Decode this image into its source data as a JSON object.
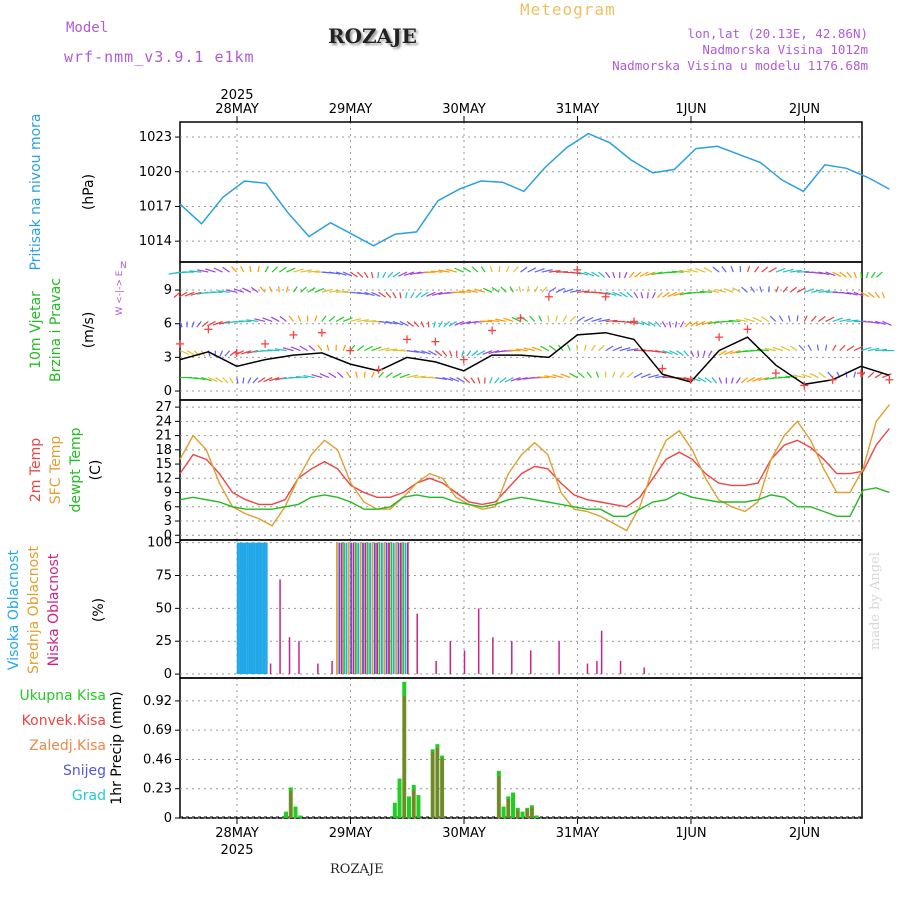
{
  "header": {
    "model_label": "Model",
    "model_name": "wrf-nmm_v3.9.1  e1km",
    "station": "ROZAJE",
    "product": "Meteogram",
    "coords": "lon,lat (20.13E, 42.86N)",
    "elevation": "Nadmorska Visina 1012m",
    "model_elevation": "Nadmorska Visina u modelu 1176.68m",
    "footer_station": "ROZAJE",
    "watermark": "made by Angel"
  },
  "time_axis": {
    "year": "2025",
    "dates": [
      "28MAY",
      "29MAY",
      "30MAY",
      "31MAY",
      "1JUN",
      "2JUN"
    ]
  },
  "colors": {
    "pressure": "#2aa0e0",
    "wind_speed": "#000000",
    "gust": "#ff4040",
    "t2m": "#ee4444",
    "tsfc": "#e0a030",
    "dewpt": "#22bb22",
    "high_cloud": "#22a8e8",
    "mid_cloud": "#e0a030",
    "low_cloud": "#cc2288",
    "rain_total": "#22cc22",
    "rain_conv": "#ee4444",
    "rain_frozen": "#ee8844",
    "snow": "#5555dd",
    "hail": "#22cccc"
  },
  "chart_data": [
    {
      "type": "line",
      "panel": "pressure",
      "ylabel_name": "Pritisak na nivou mora",
      "ylabel_unit": "(hPa)",
      "yticks": [
        1014,
        1017,
        1020,
        1023
      ],
      "ylim": [
        1012.2,
        1024.3
      ],
      "x_hours": [
        0,
        6,
        12,
        18,
        24,
        30,
        36,
        42,
        48,
        54,
        60,
        66,
        72,
        78,
        84,
        90,
        96,
        102,
        108,
        114,
        120,
        126,
        132,
        138,
        144,
        150
      ],
      "series": [
        {
          "values": [
            1017.2,
            1015.5,
            1017.8,
            1019.2,
            1019.0,
            1016.5,
            1014.4,
            1015.6,
            1014.6,
            1013.6,
            1014.6,
            1014.8,
            1017.5,
            1018.5,
            1019.2,
            1019.1,
            1018.3,
            1020.4,
            1022.1,
            1023.3,
            1022.5,
            1021.0,
            1019.9,
            1020.2,
            1022.0,
            1022.2
          ]
        }
      ],
      "series_tail": [
        1021.5,
        1020.8,
        1019.3,
        1018.3,
        1020.6,
        1020.3,
        1019.5,
        1018.5
      ]
    },
    {
      "type": "line",
      "panel": "wind",
      "ylabel_name": "10m Vjetar Brzina i Pravac",
      "ylabel_unit": "(m/s)",
      "compass": "N",
      "yticks": [
        0,
        3,
        6,
        9
      ],
      "ylim": [
        -0.8,
        11.5
      ],
      "x_hours": [
        0,
        6,
        12,
        18,
        24,
        30,
        36,
        42,
        48,
        54,
        60,
        66,
        72,
        78,
        84,
        90,
        96,
        102,
        108,
        114,
        120,
        126,
        132,
        138,
        144,
        150
      ],
      "series": [
        {
          "values": [
            2.8,
            3.5,
            2.2,
            2.8,
            3.2,
            3.4,
            2.4,
            1.8,
            3.0,
            2.6,
            1.8,
            3.2,
            3.2,
            3.0,
            5.0,
            5.2,
            4.6,
            1.5,
            0.8,
            3.6,
            4.8,
            2.3,
            0.6,
            1.0,
            2.2,
            1.4
          ]
        },
        {
          "values": [
            4.2,
            5.5,
            3.4,
            4.2,
            5.0,
            5.2,
            3.6,
            1.9,
            4.6,
            4.4,
            2.8,
            5.4,
            6.5,
            8.4,
            10.8,
            8.4,
            6.2,
            2.0,
            1.0,
            4.8,
            5.5,
            1.6,
            0.5,
            1.0,
            1.6,
            1.0
          ]
        }
      ]
    },
    {
      "type": "line",
      "panel": "temperature",
      "ylabel_names": [
        "2m Temp",
        "SFC Temp",
        "dewpt Temp"
      ],
      "ylabel_unit": "(C)",
      "yticks": [
        0,
        3,
        6,
        9,
        12,
        15,
        18,
        21,
        24,
        27
      ],
      "ylim": [
        -1,
        28.5
      ],
      "x_hours": [
        0,
        3,
        6,
        9,
        12,
        15,
        18,
        21,
        24,
        27,
        30,
        33,
        36,
        39,
        42,
        45,
        48,
        51,
        54,
        57,
        60,
        63,
        66,
        69,
        72,
        75,
        78,
        81,
        84,
        87,
        90,
        93,
        96,
        99,
        102,
        105,
        108,
        111,
        114,
        117,
        120,
        123,
        126,
        129,
        132,
        135,
        138,
        141,
        144,
        147,
        150
      ],
      "series": [
        {
          "values": [
            13,
            17,
            16,
            13,
            9,
            7.5,
            6.5,
            6.5,
            7.5,
            12,
            14,
            15.5,
            14,
            10.5,
            9,
            8,
            8,
            9,
            11,
            12,
            11,
            9,
            7,
            6.5,
            7,
            10,
            13,
            14.5,
            14,
            11,
            8.5,
            7.5,
            7,
            6.5,
            6,
            8,
            12,
            16,
            17.5,
            16,
            13,
            11,
            10.5,
            10.5,
            11,
            16,
            19,
            20,
            18.5,
            16,
            13
          ]
        },
        {
          "values": [
            16,
            21,
            18,
            11,
            6,
            4.5,
            3.5,
            2,
            6,
            12,
            17,
            20,
            18,
            11,
            7,
            5.5,
            5.5,
            8,
            11,
            13,
            12,
            8,
            6.5,
            5.5,
            6,
            13,
            17,
            19.5,
            17,
            9,
            5.5,
            5,
            4,
            2.5,
            1,
            6,
            14,
            20,
            22,
            18,
            12,
            7.5,
            6,
            5,
            7,
            16,
            21,
            24,
            20,
            14,
            9
          ]
        },
        {
          "values": [
            7.5,
            8,
            7.5,
            7,
            6,
            5.5,
            5.5,
            5.5,
            6,
            6.5,
            8,
            8.5,
            8,
            7,
            5.5,
            5.5,
            6,
            8,
            8.5,
            8,
            8,
            7,
            6.5,
            6,
            6.5,
            7.5,
            8,
            7.5,
            7,
            6.5,
            6,
            5.5,
            5.5,
            4,
            4,
            5.5,
            7,
            7.5,
            9,
            8,
            7.5,
            7,
            7,
            7,
            7.5,
            8.5,
            8,
            6,
            6,
            5,
            4
          ]
        }
      ],
      "series_tail": [
        [
          13,
          13.5,
          19,
          22.5
        ],
        [
          9,
          14,
          24,
          27.5
        ],
        [
          4,
          9.5,
          10,
          9
        ]
      ]
    },
    {
      "type": "bar",
      "panel": "clouds",
      "ylabel_names": [
        "Visoka Oblacnost",
        "Srednja Oblacnost",
        "Niska Oblacnost"
      ],
      "ylabel_unit": "(%)",
      "yticks": [
        0,
        25,
        50,
        75,
        100
      ],
      "ylim": [
        -3,
        102
      ],
      "high_cloud_hours_start": 9,
      "high_cloud_hours_end": 15,
      "high_cloud_value": 100,
      "mid_cloud_hours_start": 30,
      "mid_cloud_hours_end": 45,
      "mid_cloud_value": 100,
      "low_cloud_spikes": [
        [
          19,
          8
        ],
        [
          21,
          72
        ],
        [
          23,
          28
        ],
        [
          25,
          25
        ],
        [
          29,
          8
        ],
        [
          32,
          10
        ],
        [
          48,
          100
        ],
        [
          50,
          46
        ],
        [
          54,
          10
        ],
        [
          57,
          25
        ],
        [
          60,
          18
        ],
        [
          63,
          50
        ],
        [
          66,
          28
        ],
        [
          70,
          25
        ],
        [
          74,
          18
        ],
        [
          80,
          25
        ],
        [
          86,
          8
        ],
        [
          88,
          10
        ],
        [
          89,
          33
        ],
        [
          93,
          10
        ],
        [
          98,
          5
        ]
      ]
    },
    {
      "type": "bar",
      "panel": "precip",
      "ylabel_names": [
        "Ukupna Kisa",
        "Konvek.Kisa",
        "Zaledj.Kisa",
        "Snijeg",
        "Grad"
      ],
      "ylabel_unit": "1hr Precip (mm)",
      "yticks": [
        0,
        0.23,
        0.46,
        0.69,
        0.92
      ],
      "ylim": [
        0,
        1.1
      ],
      "total": [
        [
          22,
          0.05
        ],
        [
          23,
          0.24
        ],
        [
          24,
          0.09
        ],
        [
          25,
          0.02
        ],
        [
          45,
          0.12
        ],
        [
          46,
          0.31
        ],
        [
          47,
          1.07
        ],
        [
          48,
          0.17
        ],
        [
          49,
          0.26
        ],
        [
          50,
          0.18
        ],
        [
          53,
          0.54
        ],
        [
          54,
          0.58
        ],
        [
          55,
          0.49
        ],
        [
          67,
          0.37
        ],
        [
          68,
          0.09
        ],
        [
          69,
          0.17
        ],
        [
          70,
          0.2
        ],
        [
          71,
          0.08
        ],
        [
          72,
          0.05
        ],
        [
          73,
          0.08
        ],
        [
          74,
          0.1
        ],
        [
          75,
          0.02
        ]
      ],
      "convective": [
        [
          23,
          0.21
        ],
        [
          47,
          0.96
        ],
        [
          49,
          0.22
        ],
        [
          53,
          0.52
        ],
        [
          54,
          0.55
        ],
        [
          55,
          0.47
        ],
        [
          67,
          0.33
        ],
        [
          69,
          0.15
        ],
        [
          71,
          0.06
        ],
        [
          73,
          0.07
        ],
        [
          74,
          0.08
        ]
      ]
    }
  ]
}
